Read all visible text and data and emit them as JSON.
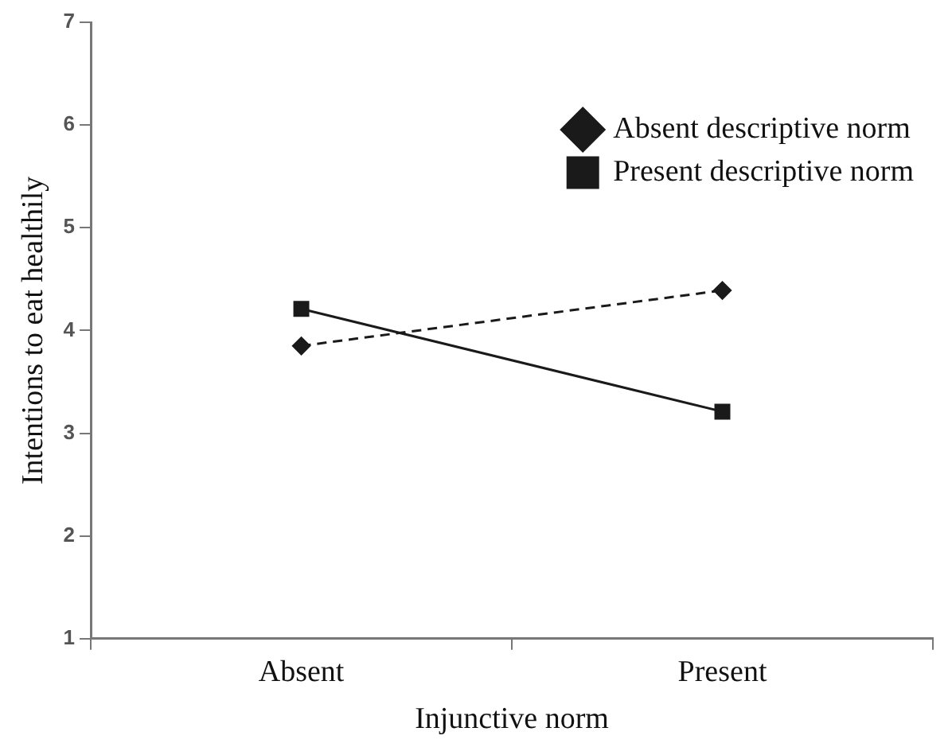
{
  "chart_data": {
    "type": "line",
    "xlabel": "Injunctive norm",
    "ylabel": "Intentions to eat healthily",
    "categories": [
      "Absent",
      "Present"
    ],
    "ylim": [
      1,
      7
    ],
    "yticks": [
      1,
      2,
      3,
      4,
      5,
      6,
      7
    ],
    "grid": false,
    "legend": "top right",
    "series": [
      {
        "name": "Absent descriptive norm",
        "color": "#1a1a1a",
        "values": [
          3.85,
          4.39
        ],
        "marker": "diamond",
        "line_style": "dashed"
      },
      {
        "name": "Present descriptive norm",
        "color": "#1a1a1a",
        "values": [
          4.21,
          3.21
        ],
        "marker": "square",
        "line_style": "solid"
      }
    ]
  }
}
